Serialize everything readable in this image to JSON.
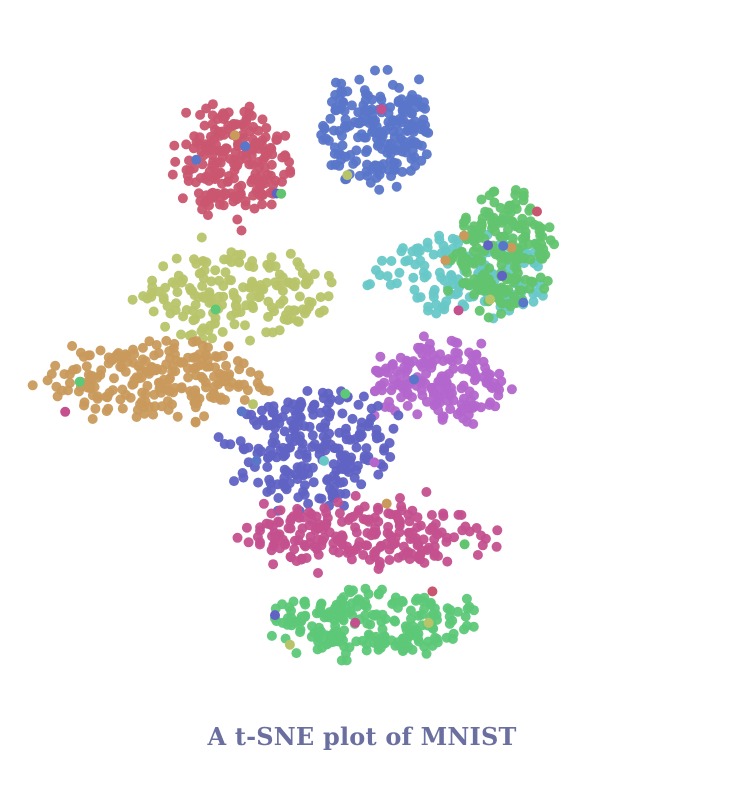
{
  "caption": "A t-SNE plot of MNIST",
  "chart_data": {
    "type": "scatter",
    "title": "A t-SNE plot of MNIST",
    "xlabel": "",
    "ylabel": "",
    "axes_visible": false,
    "grid": false,
    "legend": "none",
    "xlim": [
      0,
      100
    ],
    "ylim": [
      0,
      100
    ],
    "series": [
      {
        "color": "#c9566f",
        "cx": 32,
        "cy": 81,
        "rx": 8,
        "ry": 8,
        "n": 210
      },
      {
        "color": "#5a76c9",
        "cx": 54,
        "cy": 86,
        "rx": 8,
        "ry": 8,
        "n": 200
      },
      {
        "color": "#68c8c8",
        "cx": 68,
        "cy": 63,
        "rx": 13,
        "ry": 6,
        "n": 150
      },
      {
        "color": "#62c46e",
        "cx": 74,
        "cy": 67,
        "rx": 7,
        "ry": 9,
        "n": 200
      },
      {
        "color": "#b8c46a",
        "cx": 32,
        "cy": 60,
        "rx": 14,
        "ry": 7,
        "n": 180
      },
      {
        "color": "#c99a5c",
        "cx": 20,
        "cy": 47,
        "rx": 15,
        "ry": 6,
        "n": 220
      },
      {
        "color": "#b366cc",
        "cx": 64,
        "cy": 47,
        "rx": 10,
        "ry": 6,
        "n": 180
      },
      {
        "color": "#6062c4",
        "cx": 44,
        "cy": 36,
        "rx": 12,
        "ry": 9,
        "n": 230
      },
      {
        "color": "#c4508e",
        "cx": 52,
        "cy": 23,
        "rx": 19,
        "ry": 5,
        "n": 220
      },
      {
        "color": "#5cc878",
        "cx": 53,
        "cy": 9,
        "rx": 15,
        "ry": 5,
        "n": 210
      }
    ]
  }
}
